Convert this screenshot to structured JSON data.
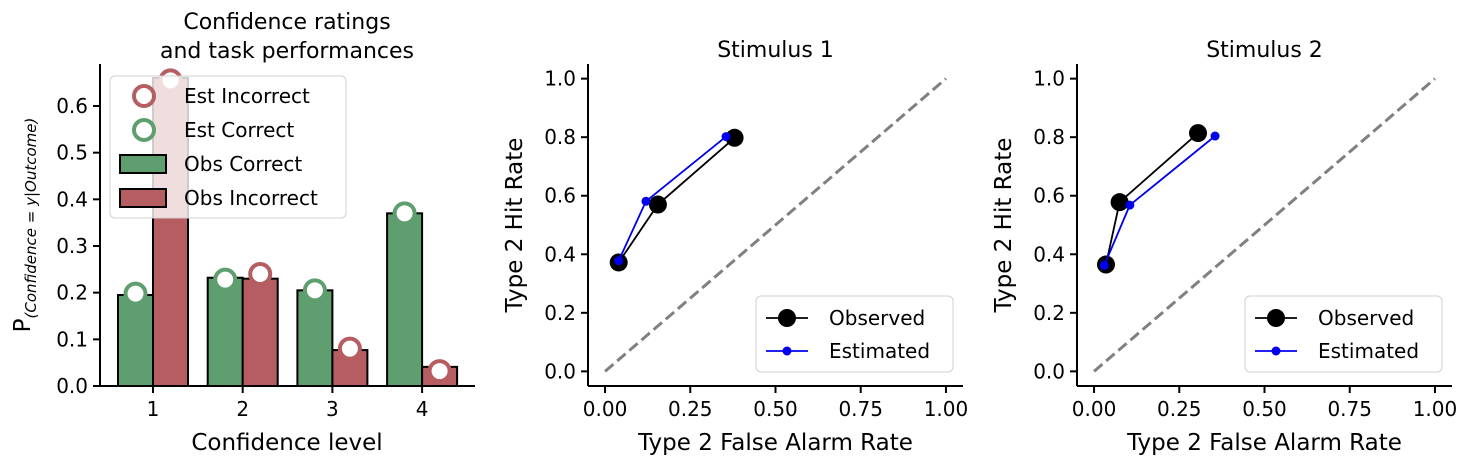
{
  "chart_data": [
    {
      "type": "bar",
      "title_lines": [
        "Confidence ratings",
        "and task performances"
      ],
      "xlabel": "Confidence level",
      "ylabel_main": "P",
      "ylabel_sub": "(Confidence = y|Outcome)",
      "categories": [
        "1",
        "2",
        "3",
        "4"
      ],
      "ylim": [
        0,
        0.69
      ],
      "yticks": [
        "0.0",
        "0.1",
        "0.2",
        "0.3",
        "0.4",
        "0.5",
        "0.6"
      ],
      "bar_series": [
        {
          "name": "Obs Correct",
          "color": "#5f9e6e",
          "values": [
            0.195,
            0.232,
            0.205,
            0.37
          ]
        },
        {
          "name": "Obs Incorrect",
          "color": "#b55d60",
          "values": [
            0.66,
            0.23,
            0.077,
            0.041
          ]
        }
      ],
      "marker_series": [
        {
          "name": "Est Incorrect",
          "color": "#b55d60",
          "values": [
            0.655,
            0.24,
            0.08,
            0.032
          ]
        },
        {
          "name": "Est Correct",
          "color": "#5f9e6e",
          "values": [
            0.198,
            0.228,
            0.205,
            0.37
          ]
        }
      ],
      "legend_order": [
        "Est Incorrect",
        "Est Correct",
        "Obs Correct",
        "Obs Incorrect"
      ],
      "legend": "upper-left"
    },
    {
      "type": "line",
      "title": "Stimulus 1",
      "xlabel": "Type 2 False Alarm Rate",
      "ylabel": "Type 2 Hit Rate",
      "xlim": [
        -0.05,
        1.05
      ],
      "ylim": [
        -0.05,
        1.05
      ],
      "xticks": [
        "0.00",
        "0.25",
        "0.50",
        "0.75",
        "1.00"
      ],
      "yticks": [
        "0.0",
        "0.2",
        "0.4",
        "0.6",
        "0.8",
        "1.0"
      ],
      "chance_line": {
        "x": [
          0,
          1
        ],
        "y": [
          0,
          1
        ],
        "color": "#808080"
      },
      "series": [
        {
          "name": "Observed",
          "color": "#000000",
          "x": [
            0.04,
            0.155,
            0.38
          ],
          "y": [
            0.372,
            0.57,
            0.798
          ]
        },
        {
          "name": "Estimated",
          "color": "#0000ee",
          "x": [
            0.04,
            0.12,
            0.355
          ],
          "y": [
            0.378,
            0.581,
            0.802
          ]
        }
      ],
      "legend": "lower-right"
    },
    {
      "type": "line",
      "title": "Stimulus 2",
      "xlabel": "Type 2 False Alarm Rate",
      "ylabel": "Type 2 Hit Rate",
      "xlim": [
        -0.05,
        1.05
      ],
      "ylim": [
        -0.05,
        1.05
      ],
      "xticks": [
        "0.00",
        "0.25",
        "0.50",
        "0.75",
        "1.00"
      ],
      "yticks": [
        "0.0",
        "0.2",
        "0.4",
        "0.6",
        "0.8",
        "1.0"
      ],
      "chance_line": {
        "x": [
          0,
          1
        ],
        "y": [
          0,
          1
        ],
        "color": "#808080"
      },
      "series": [
        {
          "name": "Observed",
          "color": "#000000",
          "x": [
            0.035,
            0.075,
            0.305
          ],
          "y": [
            0.365,
            0.578,
            0.814
          ]
        },
        {
          "name": "Estimated",
          "color": "#0000ee",
          "x": [
            0.03,
            0.105,
            0.355
          ],
          "y": [
            0.362,
            0.568,
            0.804
          ]
        }
      ],
      "legend": "lower-right"
    }
  ]
}
